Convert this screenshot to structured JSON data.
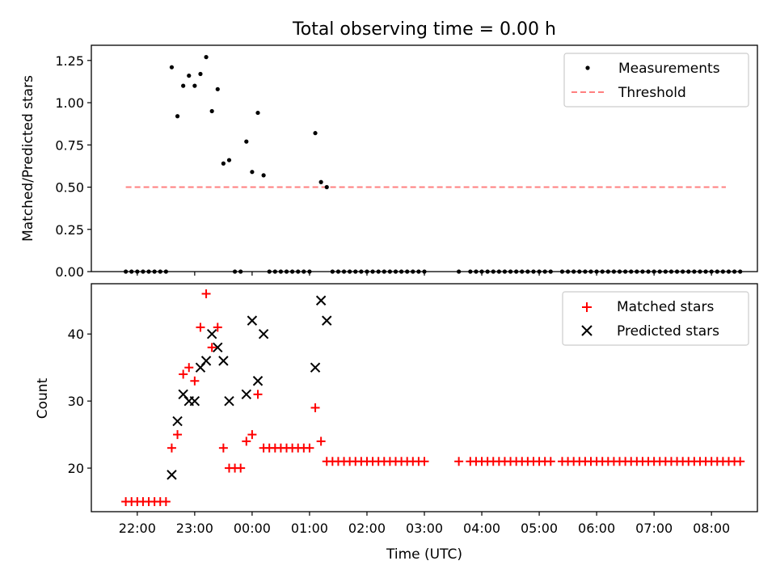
{
  "chart_data": [
    {
      "type": "scatter",
      "title": "Total observing time = 0.00 h",
      "ylabel": "Matched/Predicted stars",
      "xlabel": "",
      "ylim": [
        0,
        1.34
      ],
      "yticks": [
        "0.00",
        "0.25",
        "0.50",
        "0.75",
        "1.00",
        "1.25"
      ],
      "legend_position": "upper right",
      "threshold": 0.5,
      "threshold_range": [
        "21:48",
        "08:15"
      ],
      "series": [
        {
          "name": "Measurements",
          "points": [
            [
              "21:48",
              0
            ],
            [
              "21:54",
              0
            ],
            [
              "22:00",
              0
            ],
            [
              "22:06",
              0
            ],
            [
              "22:12",
              0
            ],
            [
              "22:18",
              0
            ],
            [
              "22:24",
              0
            ],
            [
              "22:30",
              0
            ],
            [
              "22:36",
              1.21
            ],
            [
              "22:42",
              0.92
            ],
            [
              "22:48",
              1.1
            ],
            [
              "22:54",
              1.16
            ],
            [
              "23:00",
              1.1
            ],
            [
              "23:06",
              1.17
            ],
            [
              "23:12",
              1.27
            ],
            [
              "23:18",
              0.95
            ],
            [
              "23:24",
              1.08
            ],
            [
              "23:30",
              0.64
            ],
            [
              "23:36",
              0.66
            ],
            [
              "23:42",
              0
            ],
            [
              "23:48",
              0
            ],
            [
              "23:54",
              0.77
            ],
            [
              "00:00",
              0.59
            ],
            [
              "00:06",
              0.94
            ],
            [
              "00:12",
              0.57
            ],
            [
              "00:18",
              0
            ],
            [
              "00:24",
              0
            ],
            [
              "00:30",
              0
            ],
            [
              "00:36",
              0
            ],
            [
              "00:42",
              0
            ],
            [
              "00:48",
              0
            ],
            [
              "00:54",
              0
            ],
            [
              "01:00",
              0
            ],
            [
              "01:06",
              0.82
            ],
            [
              "01:12",
              0.53
            ],
            [
              "01:18",
              0.5
            ],
            [
              "01:24",
              0
            ],
            [
              "01:30",
              0
            ],
            [
              "01:36",
              0
            ],
            [
              "01:42",
              0
            ],
            [
              "01:48",
              0
            ],
            [
              "01:54",
              0
            ],
            [
              "02:00",
              0
            ],
            [
              "02:06",
              0
            ],
            [
              "02:12",
              0
            ],
            [
              "02:18",
              0
            ],
            [
              "02:24",
              0
            ],
            [
              "02:30",
              0
            ],
            [
              "02:36",
              0
            ],
            [
              "02:42",
              0
            ],
            [
              "02:48",
              0
            ],
            [
              "02:54",
              0
            ],
            [
              "03:00",
              0
            ],
            [
              "03:36",
              0
            ],
            [
              "03:48",
              0
            ],
            [
              "03:54",
              0
            ],
            [
              "04:00",
              0
            ],
            [
              "04:06",
              0
            ],
            [
              "04:12",
              0
            ],
            [
              "04:18",
              0
            ],
            [
              "04:24",
              0
            ],
            [
              "04:30",
              0
            ],
            [
              "04:36",
              0
            ],
            [
              "04:42",
              0
            ],
            [
              "04:48",
              0
            ],
            [
              "04:54",
              0
            ],
            [
              "05:00",
              0
            ],
            [
              "05:06",
              0
            ],
            [
              "05:12",
              0
            ],
            [
              "05:24",
              0
            ],
            [
              "05:30",
              0
            ],
            [
              "05:36",
              0
            ],
            [
              "05:42",
              0
            ],
            [
              "05:48",
              0
            ],
            [
              "05:54",
              0
            ],
            [
              "06:00",
              0
            ],
            [
              "06:06",
              0
            ],
            [
              "06:12",
              0
            ],
            [
              "06:18",
              0
            ],
            [
              "06:24",
              0
            ],
            [
              "06:30",
              0
            ],
            [
              "06:36",
              0
            ],
            [
              "06:42",
              0
            ],
            [
              "06:48",
              0
            ],
            [
              "06:54",
              0
            ],
            [
              "07:00",
              0
            ],
            [
              "07:06",
              0
            ],
            [
              "07:12",
              0
            ],
            [
              "07:18",
              0
            ],
            [
              "07:24",
              0
            ],
            [
              "07:30",
              0
            ],
            [
              "07:36",
              0
            ],
            [
              "07:42",
              0
            ],
            [
              "07:48",
              0
            ],
            [
              "07:54",
              0
            ],
            [
              "08:00",
              0
            ],
            [
              "08:06",
              0
            ],
            [
              "08:12",
              0
            ],
            [
              "08:18",
              0
            ],
            [
              "08:24",
              0
            ],
            [
              "08:30",
              0
            ]
          ]
        },
        {
          "name": "Threshold",
          "line": true
        }
      ],
      "colors": {
        "measurements": "#000000",
        "threshold": "#ff7f7f"
      }
    },
    {
      "type": "scatter",
      "title": "",
      "xlabel": "Time (UTC)",
      "ylabel": "Count",
      "ylim": [
        13.5,
        47.5
      ],
      "yticks": [
        "20",
        "30",
        "40"
      ],
      "xticks": [
        "22:00",
        "23:00",
        "00:00",
        "01:00",
        "02:00",
        "03:00",
        "04:00",
        "05:00",
        "06:00",
        "07:00",
        "08:00"
      ],
      "legend_position": "upper right",
      "series": [
        {
          "name": "Matched stars",
          "points": [
            [
              "21:48",
              15
            ],
            [
              "21:54",
              15
            ],
            [
              "22:00",
              15
            ],
            [
              "22:06",
              15
            ],
            [
              "22:12",
              15
            ],
            [
              "22:18",
              15
            ],
            [
              "22:24",
              15
            ],
            [
              "22:30",
              15
            ],
            [
              "22:36",
              23
            ],
            [
              "22:42",
              25
            ],
            [
              "22:48",
              34
            ],
            [
              "22:54",
              35
            ],
            [
              "23:00",
              33
            ],
            [
              "23:06",
              41
            ],
            [
              "23:12",
              46
            ],
            [
              "23:18",
              38
            ],
            [
              "23:24",
              41
            ],
            [
              "23:30",
              23
            ],
            [
              "23:36",
              20
            ],
            [
              "23:42",
              20
            ],
            [
              "23:48",
              20
            ],
            [
              "23:54",
              24
            ],
            [
              "00:00",
              25
            ],
            [
              "00:06",
              31
            ],
            [
              "00:12",
              23
            ],
            [
              "00:18",
              23
            ],
            [
              "00:24",
              23
            ],
            [
              "00:30",
              23
            ],
            [
              "00:36",
              23
            ],
            [
              "00:42",
              23
            ],
            [
              "00:48",
              23
            ],
            [
              "00:54",
              23
            ],
            [
              "01:00",
              23
            ],
            [
              "01:06",
              29
            ],
            [
              "01:12",
              24
            ],
            [
              "01:18",
              21
            ],
            [
              "01:24",
              21
            ],
            [
              "01:30",
              21
            ],
            [
              "01:36",
              21
            ],
            [
              "01:42",
              21
            ],
            [
              "01:48",
              21
            ],
            [
              "01:54",
              21
            ],
            [
              "02:00",
              21
            ],
            [
              "02:06",
              21
            ],
            [
              "02:12",
              21
            ],
            [
              "02:18",
              21
            ],
            [
              "02:24",
              21
            ],
            [
              "02:30",
              21
            ],
            [
              "02:36",
              21
            ],
            [
              "02:42",
              21
            ],
            [
              "02:48",
              21
            ],
            [
              "02:54",
              21
            ],
            [
              "03:00",
              21
            ],
            [
              "03:36",
              21
            ],
            [
              "03:48",
              21
            ],
            [
              "03:54",
              21
            ],
            [
              "04:00",
              21
            ],
            [
              "04:06",
              21
            ],
            [
              "04:12",
              21
            ],
            [
              "04:18",
              21
            ],
            [
              "04:24",
              21
            ],
            [
              "04:30",
              21
            ],
            [
              "04:36",
              21
            ],
            [
              "04:42",
              21
            ],
            [
              "04:48",
              21
            ],
            [
              "04:54",
              21
            ],
            [
              "05:00",
              21
            ],
            [
              "05:06",
              21
            ],
            [
              "05:12",
              21
            ],
            [
              "05:24",
              21
            ],
            [
              "05:30",
              21
            ],
            [
              "05:36",
              21
            ],
            [
              "05:42",
              21
            ],
            [
              "05:48",
              21
            ],
            [
              "05:54",
              21
            ],
            [
              "06:00",
              21
            ],
            [
              "06:06",
              21
            ],
            [
              "06:12",
              21
            ],
            [
              "06:18",
              21
            ],
            [
              "06:24",
              21
            ],
            [
              "06:30",
              21
            ],
            [
              "06:36",
              21
            ],
            [
              "06:42",
              21
            ],
            [
              "06:48",
              21
            ],
            [
              "06:54",
              21
            ],
            [
              "07:00",
              21
            ],
            [
              "07:06",
              21
            ],
            [
              "07:12",
              21
            ],
            [
              "07:18",
              21
            ],
            [
              "07:24",
              21
            ],
            [
              "07:30",
              21
            ],
            [
              "07:36",
              21
            ],
            [
              "07:42",
              21
            ],
            [
              "07:48",
              21
            ],
            [
              "07:54",
              21
            ],
            [
              "08:00",
              21
            ],
            [
              "08:06",
              21
            ],
            [
              "08:12",
              21
            ],
            [
              "08:18",
              21
            ],
            [
              "08:24",
              21
            ],
            [
              "08:30",
              21
            ]
          ]
        },
        {
          "name": "Predicted stars",
          "points": [
            [
              "22:36",
              19
            ],
            [
              "22:42",
              27
            ],
            [
              "22:48",
              31
            ],
            [
              "22:54",
              30
            ],
            [
              "23:00",
              30
            ],
            [
              "23:06",
              35
            ],
            [
              "23:12",
              36
            ],
            [
              "23:18",
              40
            ],
            [
              "23:24",
              38
            ],
            [
              "23:30",
              36
            ],
            [
              "23:36",
              30
            ],
            [
              "23:54",
              31
            ],
            [
              "00:00",
              42
            ],
            [
              "00:06",
              33
            ],
            [
              "00:12",
              40
            ],
            [
              "01:06",
              35
            ],
            [
              "01:12",
              45
            ],
            [
              "01:18",
              42
            ]
          ]
        }
      ],
      "colors": {
        "matched": "#ff0000",
        "predicted": "#000000"
      }
    }
  ]
}
